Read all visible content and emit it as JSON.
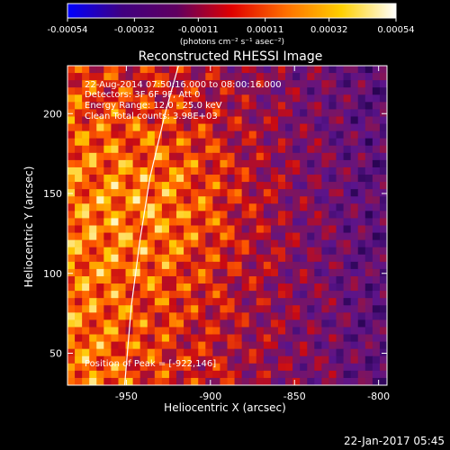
{
  "chart_data": {
    "type": "heatmap",
    "title": "Reconstructed RHESSI Image",
    "xlabel": "Heliocentric X (arcsec)",
    "ylabel": "Heliocentric Y (arcsec)",
    "xlim": [
      -985,
      -795
    ],
    "ylim": [
      30,
      230
    ],
    "xticks": [
      -950,
      -900,
      -850,
      -800
    ],
    "xtick_labels": [
      "-950",
      "-900",
      "-850",
      "-800"
    ],
    "yticks": [
      50,
      100,
      150,
      200
    ],
    "ytick_labels": [
      "50",
      "100",
      "150",
      "200"
    ],
    "colorbar": {
      "min": -0.00054,
      "max": 0.00054,
      "ticks": [
        -0.00054,
        -0.00032,
        -0.00011,
        0.00011,
        0.00032,
        0.00054
      ],
      "tick_labels": [
        "-0.00054",
        "-0.00032",
        "-0.00011",
        "0.00011",
        "0.00032",
        "0.00054"
      ],
      "unit_label": "(photons cm⁻² s⁻¹ asec⁻²)",
      "colormap": [
        "#0000ff",
        "#400080",
        "#600060",
        "#e00000",
        "#ff7000",
        "#ffd000",
        "#ffffff"
      ]
    },
    "annotations": [
      "22-Aug-2014 07:50:16.000 to 08:00:16.000",
      "Detectors: 3F 6F 9F, Att 0",
      "Energy Range: 12.0 - 25.0 keV",
      "Clean    Total counts: 3.98E+03"
    ],
    "peak_label": "Position of Peak = [-922,146]",
    "peak": [
      -922,
      146
    ],
    "limb_curve": [
      [
        -951,
        30
      ],
      [
        -947,
        80
      ],
      [
        -942,
        120
      ],
      [
        -936,
        160
      ],
      [
        -927,
        200
      ],
      [
        -919,
        230
      ]
    ],
    "limb_color": "#ffffff"
  },
  "footer": {
    "timestamp": "22-Jan-2017 05:45"
  }
}
